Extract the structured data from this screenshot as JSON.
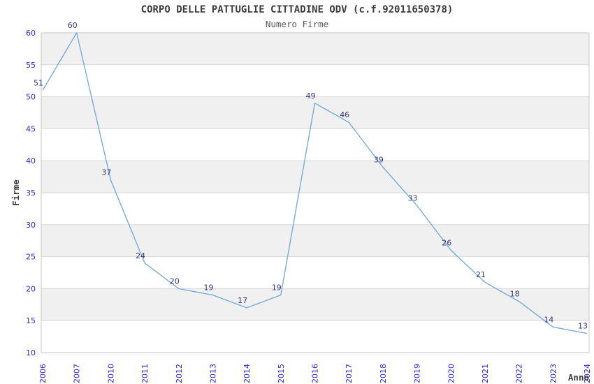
{
  "chart_data": {
    "type": "line",
    "title": "CORPO DELLE PATTUGLIE CITTADINE ODV (c.f.92011650378)",
    "subtitle": "Numero Firme",
    "xlabel": "Anno",
    "ylabel": "Firme",
    "categories": [
      "2006",
      "2007",
      "2010",
      "2011",
      "2012",
      "2013",
      "2014",
      "2015",
      "2016",
      "2017",
      "2018",
      "2019",
      "2020",
      "2021",
      "2022",
      "2023",
      "2024"
    ],
    "values": [
      51,
      60,
      37,
      24,
      20,
      19,
      17,
      19,
      49,
      46,
      39,
      33,
      26,
      21,
      18,
      14,
      13
    ],
    "ylim": [
      10,
      60
    ],
    "ytick_step": 5,
    "yticks": [
      10,
      15,
      20,
      25,
      30,
      35,
      40,
      45,
      50,
      55,
      60
    ],
    "grid": true,
    "legend": "none",
    "point_labels_shown": true,
    "colors": {
      "line": "#76ABDF",
      "tick_label": "#2A2AD4",
      "point_label": "#35357E",
      "title": "#3C3C3C",
      "subtitle": "#5A5A5A",
      "band_gray": "#F0F0F0",
      "band_white": "#FFFFFF",
      "gridline": "#D9D9D9",
      "border": "#C6C6C6",
      "background": "#FFFFFF"
    }
  }
}
